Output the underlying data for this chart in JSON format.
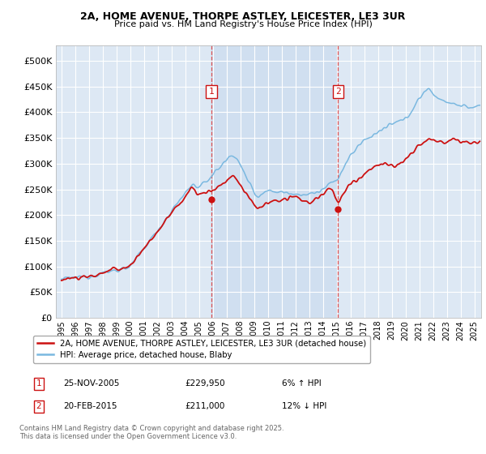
{
  "title1": "2A, HOME AVENUE, THORPE ASTLEY, LEICESTER, LE3 3UR",
  "title2": "Price paid vs. HM Land Registry's House Price Index (HPI)",
  "legend_line1": "2A, HOME AVENUE, THORPE ASTLEY, LEICESTER, LE3 3UR (detached house)",
  "legend_line2": "HPI: Average price, detached house, Blaby",
  "annotation1_date": "25-NOV-2005",
  "annotation1_price": "£229,950",
  "annotation1_pct": "6% ↑ HPI",
  "annotation2_date": "20-FEB-2015",
  "annotation2_price": "£211,000",
  "annotation2_pct": "12% ↓ HPI",
  "footer1": "Contains HM Land Registry data © Crown copyright and database right 2025.",
  "footer2": "This data is licensed under the Open Government Licence v3.0.",
  "hpi_color": "#7ab8e0",
  "price_color": "#cc1111",
  "vline_color": "#dd4444",
  "annotation_box_color": "#cc1111",
  "background_color": "#ffffff",
  "plot_bg_color": "#dde8f4",
  "grid_color": "#ffffff",
  "ylim": [
    0,
    530000
  ],
  "yticks": [
    0,
    50000,
    100000,
    150000,
    200000,
    250000,
    300000,
    350000,
    400000,
    450000,
    500000
  ],
  "xlim_start": 1994.6,
  "xlim_end": 2025.5,
  "vline1_x": 2005.9,
  "vline2_x": 2015.1,
  "sale1_x": 2005.9,
  "sale1_y": 229950,
  "sale2_x": 2015.1,
  "sale2_y": 211000
}
